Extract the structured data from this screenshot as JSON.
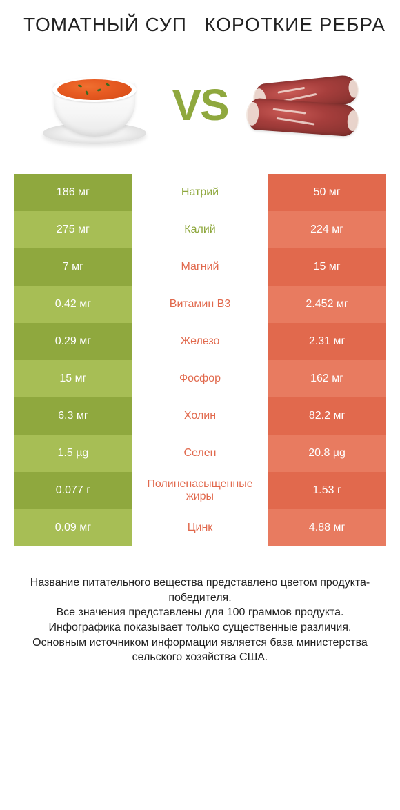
{
  "colors": {
    "green_dark": "#8fa83e",
    "green_light": "#a7be55",
    "red_dark": "#e1694d",
    "red_light": "#e87b60",
    "label_green": "#8fa83e",
    "label_red": "#e1694d",
    "text": "#222222",
    "white": "#ffffff"
  },
  "header": {
    "left_title": "ТОМАТНЫЙ СУП",
    "right_title": "КОРОТКИЕ РЕБРА",
    "vs": "VS"
  },
  "rows": [
    {
      "left": "186 мг",
      "label": "Натрий",
      "right": "50 мг",
      "winner": "left"
    },
    {
      "left": "275 мг",
      "label": "Калий",
      "right": "224 мг",
      "winner": "left"
    },
    {
      "left": "7 мг",
      "label": "Магний",
      "right": "15 мг",
      "winner": "right"
    },
    {
      "left": "0.42 мг",
      "label": "Витамин B3",
      "right": "2.452 мг",
      "winner": "right"
    },
    {
      "left": "0.29 мг",
      "label": "Железо",
      "right": "2.31 мг",
      "winner": "right"
    },
    {
      "left": "15 мг",
      "label": "Фосфор",
      "right": "162 мг",
      "winner": "right"
    },
    {
      "left": "6.3 мг",
      "label": "Холин",
      "right": "82.2 мг",
      "winner": "right"
    },
    {
      "left": "1.5 µg",
      "label": "Селен",
      "right": "20.8 µg",
      "winner": "right"
    },
    {
      "left": "0.077 г",
      "label": "Полиненасыщенные жиры",
      "right": "1.53 г",
      "winner": "right"
    },
    {
      "left": "0.09 мг",
      "label": "Цинк",
      "right": "4.88 мг",
      "winner": "right"
    }
  ],
  "footer": {
    "line1": "Название питательного вещества представлено цветом продукта-победителя.",
    "line2": "Все значения представлены для 100 граммов продукта.",
    "line3": "Инфографика показывает только существенные различия.",
    "line4": "Основным источником информации является база министерства сельского хозяйства США."
  }
}
